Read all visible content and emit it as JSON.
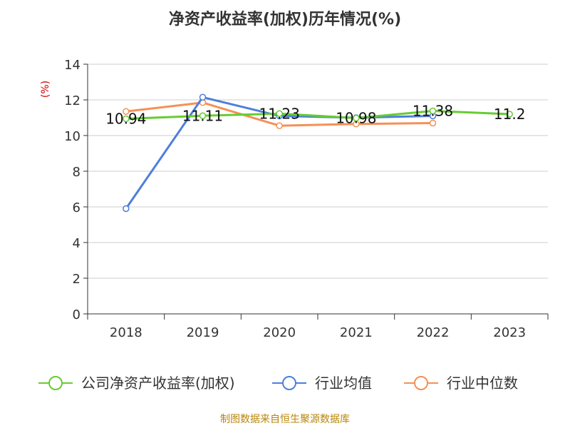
{
  "chart_data": {
    "type": "line",
    "title": "净资产收益率(加权)历年情况(%)",
    "unit_label": "(%)",
    "source": "制图数据来自恒生聚源数据库",
    "categories": [
      "2018",
      "2019",
      "2020",
      "2021",
      "2022",
      "2023"
    ],
    "ylim": [
      0,
      14
    ],
    "yticks": [
      0,
      2,
      4,
      6,
      8,
      10,
      12,
      14
    ],
    "grid": true,
    "legend_position": "bottom",
    "series": [
      {
        "name": "公司净资产收益率(加权)",
        "color": "#66cc33",
        "values": [
          10.94,
          11.11,
          11.23,
          10.98,
          11.38,
          11.2
        ],
        "labels": [
          "10.94",
          "11.11",
          "11.23",
          "10.98",
          "11.38",
          "11.2"
        ]
      },
      {
        "name": "行业均值",
        "color": "#4d7fdb",
        "values": [
          5.9,
          12.15,
          11.1,
          11.0,
          11.1,
          null
        ]
      },
      {
        "name": "行业中位数",
        "color": "#f59055",
        "values": [
          11.35,
          11.85,
          10.55,
          10.65,
          10.7,
          null
        ]
      }
    ]
  }
}
